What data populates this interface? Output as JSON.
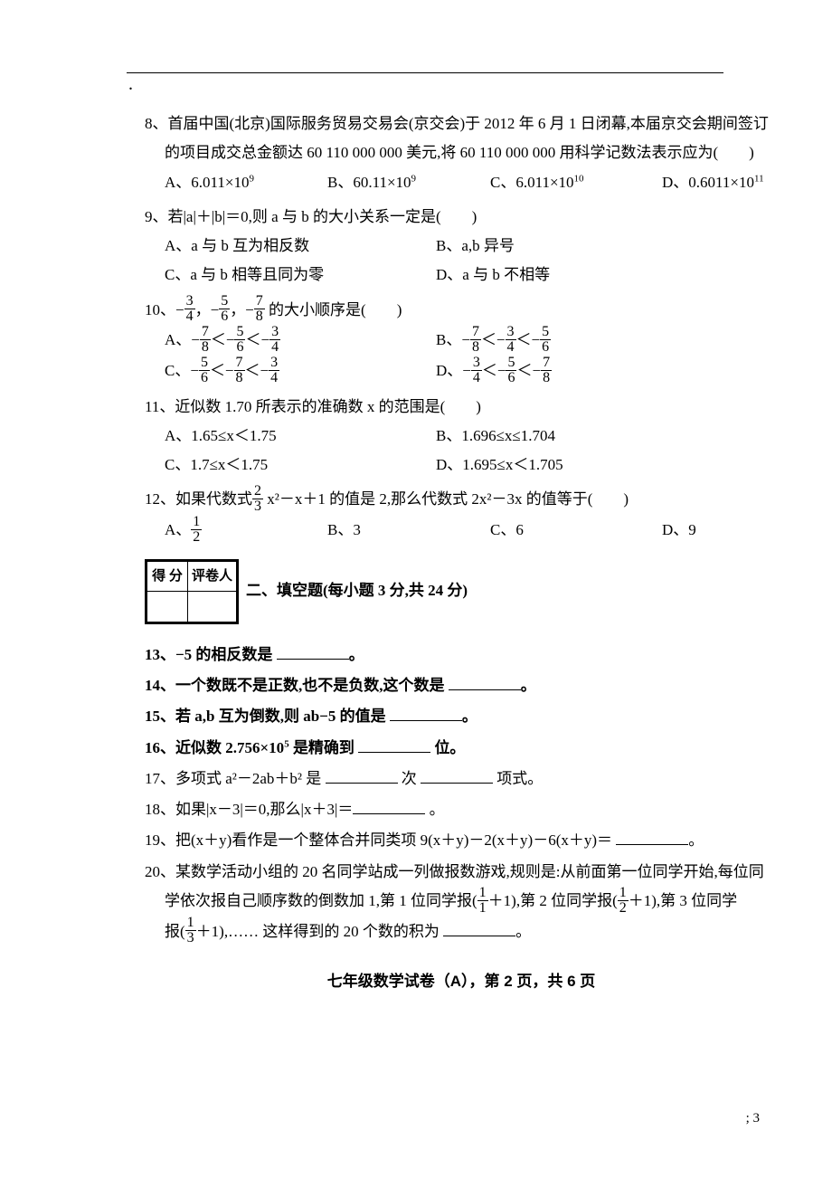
{
  "q8": {
    "stem1": "8、首届中国(北京)国际服务贸易交易会(京交会)于 2012 年 6 月 1 日闭幕,本届京交会期间签订",
    "stem2": "的项目成交总金额达 60 110 000 000 美元,将 60 110 000 000 用科学记数法表示应为(　　)",
    "A": "A、6.011×10",
    "Ae": "9",
    "B": "B、60.11×10",
    "Be": "9",
    "C": "C、6.011×10",
    "Ce": "10",
    "D": "D、0.6011×10",
    "De": "11"
  },
  "q9": {
    "stem": "9、若|a|＋|b|＝0,则 a 与 b 的大小关系一定是(　　)",
    "A": "A、a 与 b 互为相反数",
    "B": "B、a,b 异号",
    "C": "C、a 与 b 相等且同为零",
    "D": "D、a 与 b 不相等"
  },
  "q10": {
    "stem_pre": "10、",
    "stem_post": " 的大小顺序是(　　)"
  },
  "q11": {
    "stem": "11、近似数 1.70 所表示的准确数 x 的范围是(　　)",
    "A": "A、1.65≤x＜1.75",
    "B": "B、1.696≤x≤1.704",
    "C": "C、1.7≤x＜1.75",
    "D": "D、1.695≤x＜1.705"
  },
  "q12": {
    "stem_pre": "12、如果代数式",
    "stem_post": " x²－x＋1 的值是 2,那么代数式 2x²－3x 的值等于(　　)",
    "A": "A、",
    "B": "B、3",
    "C": "C、6",
    "D": "D、9"
  },
  "score": {
    "h1": "得 分",
    "h2": "评卷人"
  },
  "sec2": "二、填空题(每小题 3 分,共 24 分)",
  "q13": "13、−5 的相反数是 ",
  "q14": "14、一个数既不是正数,也不是负数,这个数是 ",
  "q15": "15、若 a,b 互为倒数,则 ab−5 的值是 ",
  "q16a": "16、近似数 2.756×10",
  "q16e": "5",
  "q16b": " 是精确到 ",
  "q16c": " 位。",
  "q17a": "17、多项式 a²－2ab＋b² 是 ",
  "q17b": " 次 ",
  "q17c": " 项式。",
  "q18a": "18、如果|x－3|＝0,那么|x＋3|＝",
  "q18b": " 。",
  "q19a": "19、把(x＋y)看作是一个整体合并同类项 9(x＋y)－2(x＋y)－6(x＋y)＝ ",
  "q19b": "。",
  "q20a": "20、某数学活动小组的 20 名同学站成一列做报数游戏,规则是:从前面第一位同学开始,每位同",
  "q20b_pre": "学依次报自己顺序数的倒数加 1,第 1 位同学报(",
  "q20b_mid1": "＋1),第 2 位同学报(",
  "q20b_mid2": "＋1),第 3 位同学",
  "q20c_pre": "报(",
  "q20c_post": "＋1),…… 这样得到的 20 个数的积为 ",
  "footer": "七年级数学试卷（A），第 2 页，共 6 页",
  "pgnum": "; 3",
  "period": "。"
}
